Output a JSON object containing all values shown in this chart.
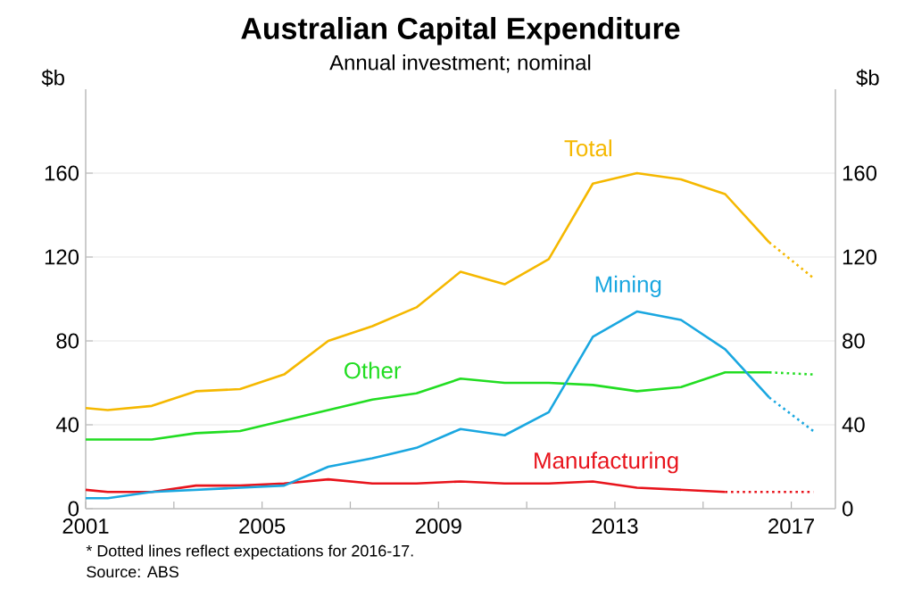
{
  "chart_data": {
    "type": "line",
    "title": "Australian Capital Expenditure",
    "subtitle": "Annual investment; nominal",
    "ylabel": "$b",
    "y2label": "$b",
    "xlim": [
      2001,
      2018
    ],
    "xticks": [
      2001,
      {
        "value": 2003,
        "label": null
      },
      2005,
      {
        "value": 2007,
        "label": null
      },
      2009,
      {
        "value": 2011,
        "label": null
      },
      2013,
      {
        "value": 2015,
        "label": null
      },
      2017
    ],
    "ylim": [
      0,
      200
    ],
    "yticks": [
      0,
      40,
      80,
      120,
      160
    ],
    "y2lim": [
      0,
      200
    ],
    "y2ticks": [
      0,
      40,
      80,
      120,
      160
    ],
    "grid": "y",
    "legend": false,
    "series": [
      {
        "name": "Total",
        "color": "#f5b800",
        "line_style": "solid",
        "x": [
          2001,
          2001.5,
          2002.5,
          2003.5,
          2004.5,
          2005.5,
          2006.5,
          2007.5,
          2008.5,
          2009.5,
          2010.5,
          2011.5,
          2012.5,
          2013.5,
          2014.5,
          2015.5,
          2016.5
        ],
        "values": [
          48,
          47,
          49,
          56,
          57,
          64,
          80,
          87,
          96,
          113,
          107,
          119,
          155,
          160,
          157,
          150,
          127
        ]
      },
      {
        "name": "Mining",
        "color": "#1aa7e0",
        "line_style": "solid",
        "x": [
          2001,
          2001.5,
          2002.5,
          2003.5,
          2004.5,
          2005.5,
          2006.5,
          2007.5,
          2008.5,
          2009.5,
          2010.5,
          2011.5,
          2012.5,
          2013.5,
          2014.5,
          2015.5,
          2016.5
        ],
        "values": [
          5,
          5,
          8,
          9,
          10,
          11,
          20,
          24,
          29,
          38,
          35,
          46,
          82,
          94,
          90,
          76,
          53
        ]
      },
      {
        "name": "Other",
        "color": "#22dd22",
        "line_style": "solid",
        "x": [
          2001,
          2001.5,
          2002.5,
          2003.5,
          2004.5,
          2005.5,
          2006.5,
          2007.5,
          2008.5,
          2009.5,
          2010.5,
          2011.5,
          2012.5,
          2013.5,
          2014.5,
          2015.5,
          2016.5
        ],
        "values": [
          33,
          33,
          33,
          36,
          37,
          42,
          47,
          52,
          55,
          62,
          60,
          60,
          59,
          56,
          58,
          65,
          65
        ]
      },
      {
        "name": "Manufacturing",
        "color": "#e8141c",
        "line_style": "solid",
        "x": [
          2001,
          2001.5,
          2002.5,
          2003.5,
          2004.5,
          2005.5,
          2006.5,
          2007.5,
          2008.5,
          2009.5,
          2010.5,
          2011.5,
          2012.5,
          2013.5,
          2014.5,
          2015.5
        ],
        "values": [
          9,
          8,
          8,
          11,
          11,
          12,
          14,
          12,
          12,
          13,
          12,
          12,
          13,
          10,
          9,
          8
        ]
      },
      {
        "color": "#f5b800",
        "line_style": "dotted",
        "x": [
          2016.5,
          2017.5
        ],
        "values": [
          127,
          110
        ]
      },
      {
        "color": "#1aa7e0",
        "line_style": "dotted",
        "x": [
          2016.5,
          2017.5
        ],
        "values": [
          53,
          37
        ]
      },
      {
        "color": "#22dd22",
        "line_style": "dotted",
        "x": [
          2016.5,
          2017.5
        ],
        "values": [
          65,
          64
        ]
      },
      {
        "color": "#e8141c",
        "line_style": "dotted",
        "x": [
          2015.5,
          2017.5
        ],
        "values": [
          8,
          8
        ]
      }
    ],
    "annotations": [
      "* Dotted lines reflect expectations for 2016-17.",
      "Source: ABS"
    ]
  }
}
